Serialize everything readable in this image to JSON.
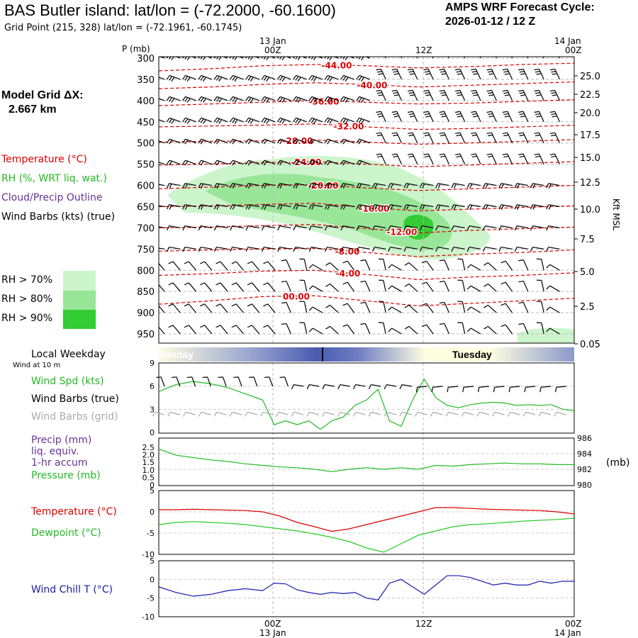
{
  "header": {
    "title": "BAS Butler island:  lat/lon = (-72.2000, -60.1600)",
    "grid_point": "Grid Point (215, 328) lat/lon = (-72.1961, -60.1745)",
    "cycle_label": "AMPS WRF Forecast Cycle:",
    "cycle_value": "2026-01-12 / 12  Z"
  },
  "time_axis": {
    "top_dates": [
      "13 Jan",
      "14 Jan"
    ],
    "ticks": [
      "00Z",
      "12Z",
      "00Z"
    ],
    "bottom_dates": [
      "13 Jan",
      "14 Jan"
    ]
  },
  "left_panel": {
    "model_grid_label": "Model Grid ΔX:",
    "model_grid_value": "2.667 km",
    "legend_temperature": "Temperature (°C)",
    "legend_rh": "RH (%, WRT liq. wat.)",
    "legend_cloud": "Cloud/Precip Outline",
    "legend_wind": "Wind Barbs (kts) (true)",
    "rh70": "RH > 70%",
    "rh80": "RH > 80%",
    "rh90": "RH > 90%",
    "p_axis_label": "P (mb)",
    "right_axis_label": "Kft MSL",
    "local_weekday": "Local Weekday",
    "wind_at_10m": "Wind at 10 m",
    "spd_label": "Wind Spd (kts)",
    "barbs_true": "Wind Barbs (true)",
    "barbs_grid": "Wind Barbs (grid)",
    "precip_label": "Precip (mm)",
    "liq_equiv": "liq. equiv.",
    "hr_accum": "1-hr accum",
    "pressure_label": "Pressure (mb)",
    "mb_unit": "(mb)",
    "temp_label": "Temperature (°C)",
    "dew_label": "Dewpoint (°C)",
    "windchill_label": "Wind Chill T (°C)"
  },
  "colors": {
    "temperature": "#dd0000",
    "rh70": "#ccf5cc",
    "rh80": "#99e699",
    "rh90": "#33cc33",
    "cloud": "#663399",
    "wind_grid": "#aaaaaa",
    "spd": "#22bb22",
    "dew": "#22cc22",
    "windchill": "#1a1aaa",
    "weekday_dark": "#4a5bb0",
    "weekday_light": "#fdfde0"
  },
  "weekday_bar": {
    "left": "Monday",
    "right": "Tuesday"
  },
  "chart_data": [
    {
      "type": "heatmap",
      "panel": "pressure-time cross section",
      "y_axis_ticks": [
        300,
        350,
        400,
        450,
        500,
        550,
        600,
        650,
        700,
        750,
        800,
        850,
        900,
        950
      ],
      "right_axis_ticks": [
        "25.0",
        "22.5",
        "20.0",
        "17.5",
        "15.0",
        "12.5",
        "10.0",
        "7.5",
        "5.0",
        "2.5",
        "0.05"
      ],
      "temperature_contour_labels": [
        "-44.00",
        "-40.00",
        "-36.00",
        "-32.00",
        "-28.00",
        "-24.00",
        "-20.00",
        "-16.00",
        "-12.00",
        "-8.00",
        "-4.00",
        "00.00"
      ],
      "temperature_contours": [
        {
          "level": -44,
          "p": [
            330,
            325,
            318,
            315,
            318,
            323,
            320,
            315,
            312
          ]
        },
        {
          "level": -40,
          "p": [
            372,
            368,
            362,
            358,
            362,
            368,
            364,
            360,
            356
          ]
        },
        {
          "level": -36,
          "p": [
            412,
            408,
            404,
            400,
            404,
            408,
            406,
            402,
            398
          ]
        },
        {
          "level": -32,
          "p": [
            462,
            460,
            458,
            455,
            462,
            468,
            466,
            462,
            458
          ]
        },
        {
          "level": -28,
          "p": [
            498,
            496,
            495,
            493,
            498,
            503,
            500,
            496,
            492
          ]
        },
        {
          "level": -24,
          "p": [
            552,
            550,
            546,
            544,
            550,
            556,
            552,
            548,
            544
          ]
        },
        {
          "level": -20,
          "p": [
            608,
            604,
            600,
            598,
            606,
            612,
            608,
            604,
            600
          ]
        },
        {
          "level": -16,
          "p": [
            650,
            648,
            645,
            642,
            652,
            660,
            656,
            652,
            648
          ]
        },
        {
          "level": -12,
          "p": [
            700,
            698,
            695,
            692,
            702,
            712,
            706,
            702,
            698
          ]
        },
        {
          "level": -8,
          "p": [
            755,
            752,
            750,
            748,
            758,
            768,
            762,
            758,
            752
          ]
        },
        {
          "level": -4,
          "p": [
            812,
            808,
            802,
            800,
            810,
            822,
            816,
            812,
            806
          ]
        },
        {
          "level": 0,
          "p": [
            880,
            872,
            862,
            860,
            872,
            884,
            878,
            872,
            866
          ]
        }
      ]
    },
    {
      "type": "line",
      "panel": "10 m wind speed",
      "ylim": [
        0,
        9
      ],
      "y_ticks": [
        0,
        3,
        6,
        9
      ],
      "series": [
        {
          "name": "Wind Spd (kts)",
          "x_hours": [
            0,
            3,
            6,
            9,
            12,
            15,
            18,
            20,
            22,
            24,
            26,
            28,
            30,
            32,
            34,
            36,
            38,
            40,
            42,
            44,
            46,
            48,
            50,
            52,
            54,
            56,
            58,
            60,
            62,
            64,
            66,
            68,
            70,
            72
          ],
          "values": [
            5.3,
            6.2,
            6.6,
            6.3,
            5.8,
            5.0,
            4.2,
            1.0,
            1.5,
            1.0,
            1.5,
            0.4,
            1.5,
            2.0,
            3.5,
            4.2,
            5.6,
            1.5,
            0.8,
            4.2,
            6.9,
            4.5,
            3.5,
            3.2,
            3.6,
            3.8,
            3.9,
            3.8,
            3.5,
            3.6,
            3.5,
            3.6,
            3.0,
            2.8
          ]
        }
      ]
    },
    {
      "type": "line",
      "panel": "precip and pressure",
      "y_left_ticks": [
        "0",
        "0.5",
        "1.0",
        "1.5",
        "2.0",
        "2.5"
      ],
      "y_right_ticks": [
        "980",
        "982",
        "984",
        "986"
      ],
      "series": [
        {
          "name": "Pressure (mb)",
          "x_hours": [
            0,
            3,
            6,
            9,
            12,
            15,
            18,
            21,
            24,
            27,
            30,
            33,
            36,
            39,
            42,
            45,
            48,
            51,
            54,
            57,
            60,
            63,
            66,
            69,
            72
          ],
          "values": [
            984.6,
            983.8,
            983.5,
            983.2,
            983.0,
            982.7,
            982.5,
            982.3,
            982.2,
            982.0,
            981.7,
            982.0,
            982.2,
            982.0,
            982.2,
            982.0,
            982.5,
            982.4,
            982.6,
            982.7,
            982.8,
            982.7,
            982.7,
            982.6,
            982.6
          ]
        }
      ]
    },
    {
      "type": "line",
      "panel": "temperature and dewpoint",
      "ylim": [
        -10,
        5
      ],
      "y_ticks": [
        5,
        0,
        -5,
        -10
      ],
      "series": [
        {
          "name": "Temperature (°C)",
          "x_hours": [
            0,
            3,
            6,
            9,
            12,
            15,
            18,
            21,
            24,
            27,
            30,
            33,
            36,
            39,
            42,
            45,
            48,
            51,
            54,
            57,
            60,
            63,
            66,
            69,
            72
          ],
          "values": [
            0.5,
            0.5,
            0.6,
            0.5,
            0.4,
            0.3,
            0.0,
            -1.0,
            -2.5,
            -3.5,
            -4.6,
            -4.0,
            -3.0,
            -2.0,
            -1.0,
            0.0,
            1.0,
            1.0,
            0.8,
            0.6,
            0.5,
            0.4,
            0.3,
            0.0,
            -0.5
          ]
        },
        {
          "name": "Dewpoint (°C)",
          "x_hours": [
            0,
            3,
            6,
            9,
            12,
            15,
            18,
            21,
            24,
            27,
            30,
            33,
            36,
            39,
            42,
            45,
            48,
            51,
            54,
            57,
            60,
            63,
            66,
            69,
            72
          ],
          "values": [
            -3.0,
            -2.5,
            -2.3,
            -2.5,
            -2.7,
            -3.0,
            -3.5,
            -4.0,
            -4.5,
            -5.2,
            -6.0,
            -7.0,
            -8.5,
            -9.5,
            -7.5,
            -5.5,
            -4.5,
            -3.5,
            -3.0,
            -2.8,
            -2.5,
            -2.2,
            -2.0,
            -1.8,
            -1.5
          ]
        }
      ]
    },
    {
      "type": "line",
      "panel": "wind chill",
      "ylim": [
        -10,
        5
      ],
      "y_ticks": [
        5,
        0,
        -5,
        -10
      ],
      "series": [
        {
          "name": "Wind Chill T (°C)",
          "x_hours": [
            0,
            3,
            6,
            9,
            12,
            15,
            18,
            20,
            22,
            24,
            26,
            28,
            30,
            32,
            34,
            36,
            38,
            40,
            42,
            44,
            46,
            48,
            50,
            52,
            54,
            56,
            58,
            60,
            62,
            64,
            66,
            68,
            70,
            72
          ],
          "values": [
            -2.0,
            -3.5,
            -4.5,
            -4.0,
            -3.0,
            -2.5,
            -3.0,
            -1.0,
            -1.2,
            -2.8,
            -3.5,
            -4.0,
            -3.5,
            -3.8,
            -3.5,
            -5.0,
            -5.5,
            -1.0,
            0.0,
            -2.0,
            -4.0,
            -1.5,
            1.0,
            1.0,
            0.5,
            -0.5,
            -1.5,
            -1.0,
            -1.5,
            -1.5,
            -0.5,
            -1.0,
            -0.5,
            -0.5
          ]
        }
      ]
    }
  ]
}
